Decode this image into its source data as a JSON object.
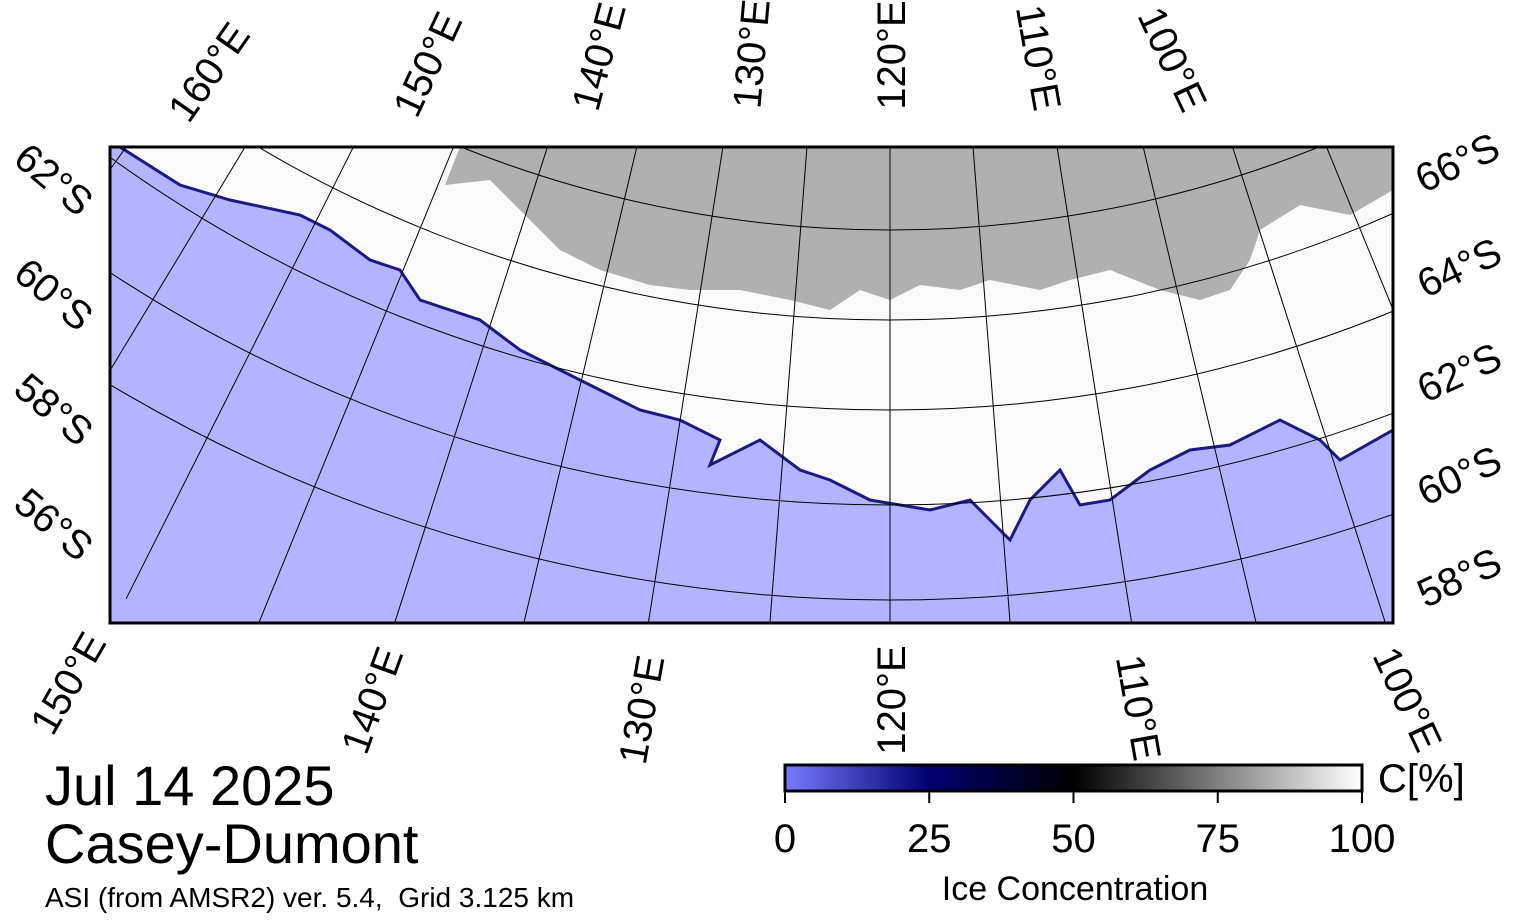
{
  "map": {
    "top_labels": [
      "160°E",
      "150°E",
      "140°E",
      "130°E",
      "120°E",
      "110°E",
      "100°E"
    ],
    "bottom_labels": [
      "150°E",
      "140°E",
      "130°E",
      "120°E",
      "110°E",
      "100°E"
    ],
    "left_labels": [
      "62°S",
      "60°S",
      "58°S",
      "56°S"
    ],
    "right_labels": [
      "66°S",
      "64°S",
      "62°S",
      "60°S",
      "58°S"
    ]
  },
  "title": {
    "date": "Jul 14 2025",
    "region": "Casey-Dumont",
    "source": "ASI (from AMSR2) ver. 5.4,  Grid 3.125 km"
  },
  "colorbar": {
    "unit": "C[%]",
    "label": "Ice Concentration",
    "lim": [
      0,
      100
    ],
    "ticks": [
      0,
      25,
      50,
      75,
      100
    ]
  }
}
